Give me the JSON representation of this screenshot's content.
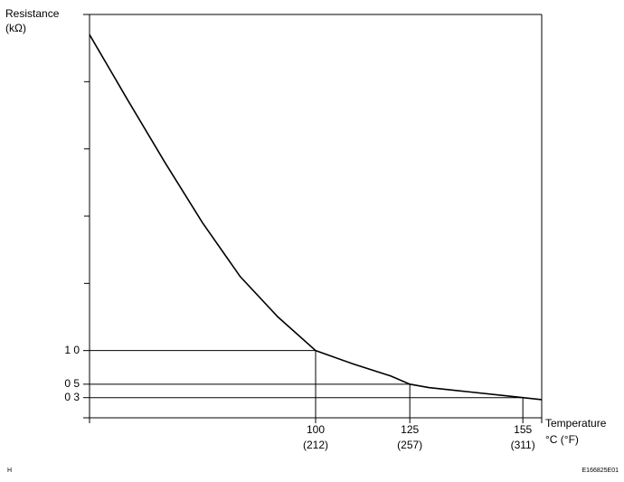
{
  "chart_data": {
    "type": "line",
    "y_label": [
      "Resistance",
      "(kΩ)"
    ],
    "x_label": [
      "Temperature",
      "°C (°F)"
    ],
    "x": [
      40,
      50,
      60,
      70,
      80,
      90,
      100,
      110,
      120,
      125,
      130,
      140,
      150,
      155,
      160
    ],
    "series": [
      {
        "color": "#000000",
        "values": [
          5.7,
          4.74,
          3.8,
          2.9,
          2.1,
          1.5,
          1.0,
          0.8,
          0.62,
          0.5,
          0.45,
          0.39,
          0.33,
          0.3,
          0.27
        ]
      }
    ],
    "reference_points": {
      "x": [
        100,
        125,
        155
      ],
      "y": [
        1.0,
        0.5,
        0.3
      ]
    },
    "xlim": [
      40,
      160
    ],
    "ylim": [
      0,
      6
    ],
    "xticks": [
      100,
      125,
      155
    ],
    "xtick_sublabels": [
      "(212)",
      "(257)",
      "(311)"
    ],
    "yticks": [
      {
        "value": 1.0,
        "label": "1 0"
      },
      {
        "value": 0.5,
        "label": "0 5"
      },
      {
        "value": 0.3,
        "label": "0 3"
      }
    ],
    "yticks_minor": [
      2,
      3,
      4,
      5,
      6
    ],
    "corner_left": "H",
    "corner_right": "E166825E01"
  }
}
